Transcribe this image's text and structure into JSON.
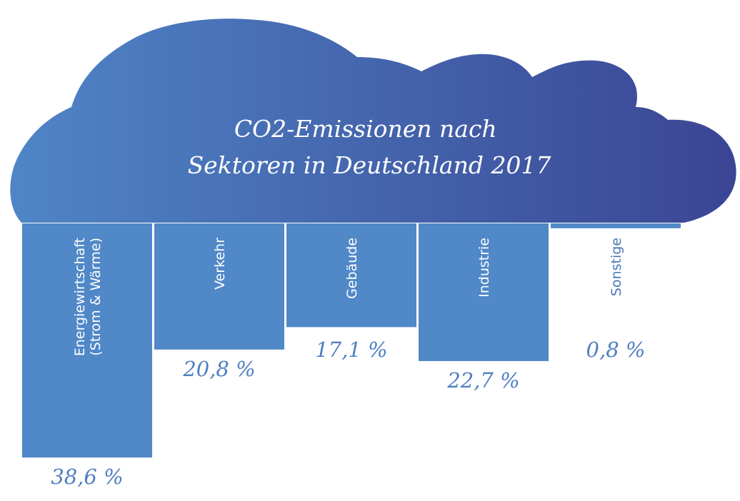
{
  "chart_data": {
    "type": "bar",
    "orientation": "vertical-downward",
    "title_lines": [
      "CO2-Emissionen nach",
      "Sektoren in Deutschland 2017"
    ],
    "categories": [
      [
        "Energiewirtschaft",
        "(Strom & Wärme)"
      ],
      [
        "Verkehr"
      ],
      [
        "Gebäude"
      ],
      [
        "Industrie"
      ],
      [
        "Sonstige"
      ]
    ],
    "values": [
      38.6,
      20.8,
      17.1,
      22.7,
      0.8
    ],
    "value_labels": [
      "38,6 %",
      "20,8 %",
      "17,1 %",
      "22,7 %",
      "0,8 %"
    ],
    "unit": "%",
    "colors": {
      "cloud_start": "#4f85c6",
      "cloud_end": "#3a4594",
      "bar": "#5088c8",
      "value_text": "#4f7fc1"
    }
  }
}
